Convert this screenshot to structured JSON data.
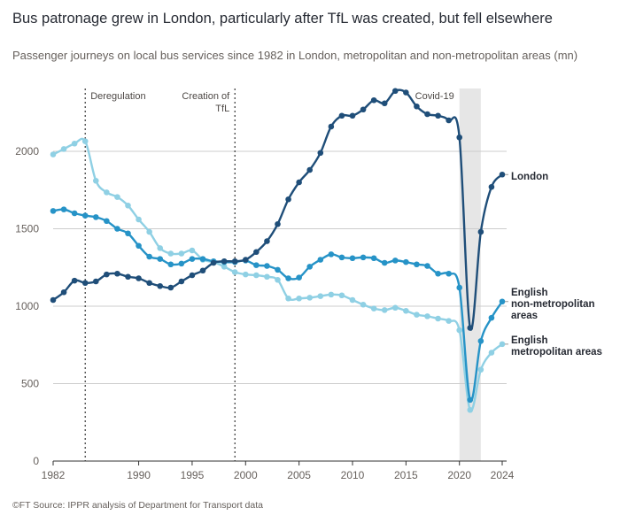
{
  "chart_data": {
    "type": "line",
    "title": "Bus patronage grew in London, particularly after TfL was created, but fell elsewhere",
    "subtitle": "Passenger journeys on local bus services since 1982 in London, metropolitan and non-metropolitan areas (mn)",
    "source": "©FT Source: IPPR analysis of Department for Transport data",
    "xlabel": "",
    "ylabel": "",
    "xlim": [
      1982,
      2024
    ],
    "ylim": [
      0,
      2400
    ],
    "x_ticks": [
      "1982",
      "1990",
      "1995",
      "2000",
      "2005",
      "2010",
      "2015",
      "2020",
      "2024"
    ],
    "y_ticks": [
      "0",
      "500",
      "1000",
      "1500",
      "2000"
    ],
    "grid": "horizontal",
    "x": [
      1982,
      1983,
      1984,
      1985,
      1986,
      1987,
      1988,
      1989,
      1990,
      1991,
      1992,
      1993,
      1994,
      1995,
      1996,
      1997,
      1998,
      1999,
      2000,
      2001,
      2002,
      2003,
      2004,
      2005,
      2006,
      2007,
      2008,
      2009,
      2010,
      2011,
      2012,
      2013,
      2014,
      2015,
      2016,
      2017,
      2018,
      2019,
      2020,
      2021,
      2022,
      2023,
      2024
    ],
    "series": [
      {
        "name": "London",
        "color": "#1f4e79",
        "values": [
          1040,
          1090,
          1165,
          1150,
          1160,
          1205,
          1210,
          1190,
          1180,
          1150,
          1130,
          1120,
          1160,
          1200,
          1230,
          1280,
          1290,
          1290,
          1300,
          1350,
          1420,
          1530,
          1690,
          1800,
          1880,
          1990,
          2160,
          2230,
          2230,
          2270,
          2330,
          2310,
          2390,
          2380,
          2290,
          2240,
          2230,
          2200,
          2090,
          860,
          1480,
          1770,
          1850
        ]
      },
      {
        "name": "English non-metropolitan areas",
        "color": "#2693c7",
        "values": [
          1615,
          1625,
          1600,
          1585,
          1575,
          1550,
          1500,
          1470,
          1390,
          1320,
          1305,
          1270,
          1275,
          1305,
          1305,
          1290,
          1285,
          1285,
          1295,
          1265,
          1260,
          1235,
          1180,
          1185,
          1255,
          1300,
          1335,
          1315,
          1310,
          1315,
          1310,
          1280,
          1295,
          1285,
          1270,
          1260,
          1210,
          1210,
          1120,
          395,
          775,
          925,
          1030
        ]
      },
      {
        "name": "English metropolitan areas",
        "color": "#8fd0e4",
        "values": [
          1980,
          2015,
          2050,
          2065,
          1810,
          1735,
          1705,
          1650,
          1560,
          1480,
          1375,
          1340,
          1340,
          1360,
          1300,
          1285,
          1255,
          1220,
          1205,
          1200,
          1190,
          1170,
          1050,
          1050,
          1055,
          1065,
          1075,
          1070,
          1040,
          1010,
          985,
          975,
          990,
          970,
          945,
          935,
          920,
          905,
          845,
          330,
          590,
          700,
          755
        ]
      }
    ],
    "annotations": [
      {
        "x": 1985,
        "label": "Deregulation"
      },
      {
        "x": 1999,
        "label": [
          "Creation of",
          "TfL"
        ]
      }
    ],
    "shaded_period": {
      "x0": 2020,
      "x1": 2022,
      "label": "Covid-19"
    },
    "series_labels": {
      "London": [
        "London"
      ],
      "English non-metropolitan areas": [
        "English",
        "non-metropolitan",
        "areas"
      ],
      "English metropolitan areas": [
        "English",
        "metropolitan areas"
      ]
    }
  }
}
